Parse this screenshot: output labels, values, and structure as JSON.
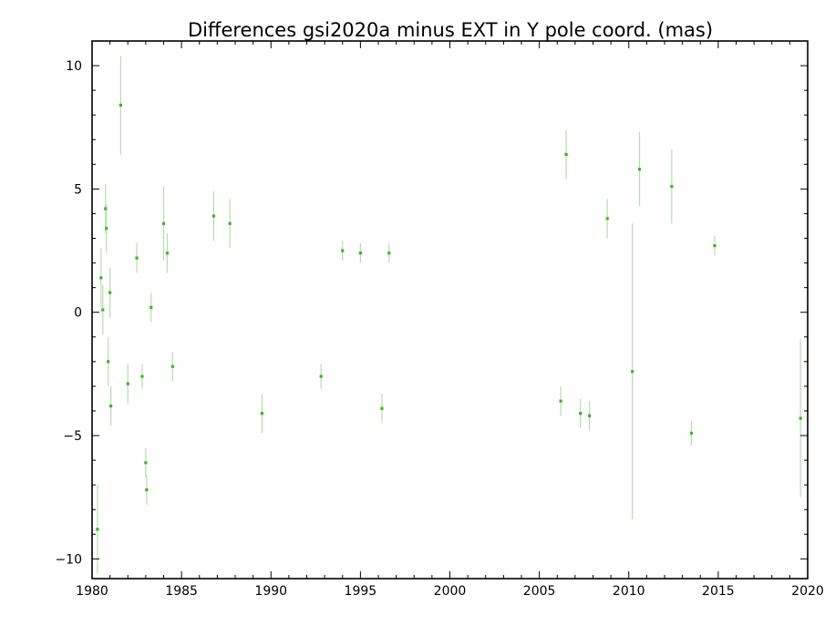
{
  "chart_data": {
    "type": "scatter",
    "title": "Differences gsi2020a minus EXT in Y pole coord. (mas)",
    "xlabel": "",
    "ylabel": "",
    "xlim": [
      1980,
      2020
    ],
    "ylim": [
      -10.8,
      11.0
    ],
    "x_ticks": [
      1980,
      1985,
      1990,
      1995,
      2000,
      2005,
      2010,
      2015,
      2020
    ],
    "y_ticks": [
      -10,
      -5,
      0,
      5,
      10
    ],
    "x_tick_labels": [
      "1980",
      "1985",
      "1990",
      "1995",
      "2000",
      "2005",
      "2010",
      "2015",
      "2020"
    ],
    "y_tick_labels": [
      "−10",
      "−5",
      "0",
      "5",
      "10"
    ],
    "grid": false,
    "legend": "none",
    "colors": {
      "points": "#3cb428",
      "error_bars": "#b8dcb0"
    },
    "series": [
      {
        "points": [
          {
            "x": 1980.3,
            "y": -8.8,
            "err": 1.8
          },
          {
            "x": 1980.5,
            "y": 1.4,
            "err": 1.2
          },
          {
            "x": 1980.6,
            "y": 0.1,
            "err": 1.0
          },
          {
            "x": 1980.75,
            "y": 4.2,
            "err": 1.0
          },
          {
            "x": 1980.8,
            "y": 3.4,
            "err": 1.0
          },
          {
            "x": 1980.9,
            "y": -2.0,
            "err": 1.0
          },
          {
            "x": 1981.0,
            "y": 0.8,
            "err": 1.0
          },
          {
            "x": 1981.05,
            "y": -3.8,
            "err": 0.8
          },
          {
            "x": 1981.6,
            "y": 8.4,
            "err": 2.0
          },
          {
            "x": 1982.0,
            "y": -2.9,
            "err": 0.8
          },
          {
            "x": 1982.5,
            "y": 2.2,
            "err": 0.6
          },
          {
            "x": 1982.8,
            "y": -2.6,
            "err": 0.5
          },
          {
            "x": 1983.0,
            "y": -6.1,
            "err": 0.6
          },
          {
            "x": 1983.05,
            "y": -7.2,
            "err": 0.6
          },
          {
            "x": 1983.3,
            "y": 0.2,
            "err": 0.6
          },
          {
            "x": 1984.0,
            "y": 3.6,
            "err": 1.5
          },
          {
            "x": 1984.2,
            "y": 2.4,
            "err": 0.8
          },
          {
            "x": 1984.5,
            "y": -2.2,
            "err": 0.6
          },
          {
            "x": 1986.8,
            "y": 3.9,
            "err": 1.0
          },
          {
            "x": 1987.7,
            "y": 3.6,
            "err": 1.0
          },
          {
            "x": 1989.5,
            "y": -4.1,
            "err": 0.8
          },
          {
            "x": 1992.8,
            "y": -2.6,
            "err": 0.5
          },
          {
            "x": 1994.0,
            "y": 2.5,
            "err": 0.4
          },
          {
            "x": 1995.0,
            "y": 2.4,
            "err": 0.4
          },
          {
            "x": 1996.2,
            "y": -3.9,
            "err": 0.6
          },
          {
            "x": 1996.6,
            "y": 2.4,
            "err": 0.4
          },
          {
            "x": 2006.2,
            "y": -3.6,
            "err": 0.6
          },
          {
            "x": 2006.5,
            "y": 6.4,
            "err": 1.0
          },
          {
            "x": 2007.3,
            "y": -4.1,
            "err": 0.6
          },
          {
            "x": 2007.8,
            "y": -4.2,
            "err": 0.6
          },
          {
            "x": 2008.8,
            "y": 3.8,
            "err": 0.8
          },
          {
            "x": 2010.2,
            "y": -2.4,
            "err": 6.0
          },
          {
            "x": 2010.6,
            "y": 5.8,
            "err": 1.5
          },
          {
            "x": 2012.4,
            "y": 5.1,
            "err": 1.5
          },
          {
            "x": 2013.5,
            "y": -4.9,
            "err": 0.5
          },
          {
            "x": 2014.8,
            "y": 2.7,
            "err": 0.4
          },
          {
            "x": 2019.6,
            "y": -4.3,
            "err": 3.2
          }
        ]
      }
    ]
  }
}
